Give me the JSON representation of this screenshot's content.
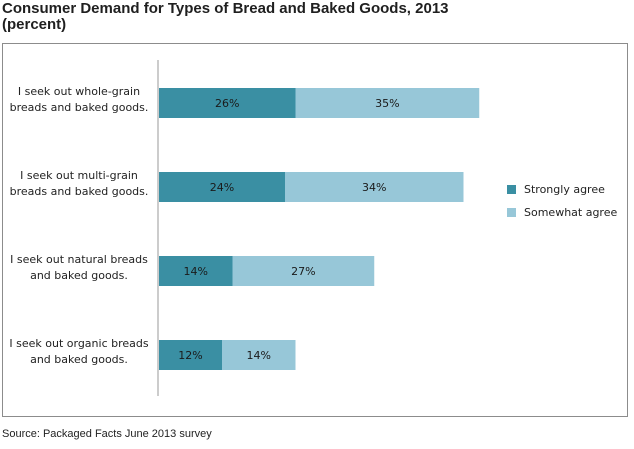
{
  "chart_data": {
    "type": "bar",
    "orientation": "horizontal",
    "stacked": true,
    "title": "Consumer Demand for Types of Bread and Baked Goods, 2013",
    "subtitle": "(percent)",
    "categories": [
      [
        "I seek out whole-grain",
        "breads and baked goods."
      ],
      [
        "I seek out multi-grain",
        "breads and baked goods."
      ],
      [
        "I seek out natural breads",
        "and baked goods."
      ],
      [
        "I seek out organic breads",
        "and baked goods."
      ]
    ],
    "series": [
      {
        "name": "Strongly agree",
        "color": "#3a8fa3",
        "values": [
          26,
          24,
          14,
          12
        ],
        "labels": [
          "26%",
          "24%",
          "14%",
          "12%"
        ]
      },
      {
        "name": "Somewhat agree",
        "color": "#97c7d8",
        "values": [
          35,
          34,
          27,
          14
        ],
        "labels": [
          "35%",
          "34%",
          "27%",
          "14%"
        ]
      }
    ],
    "xlim": [
      0,
      100
    ],
    "grid": false,
    "legend_position": "right"
  },
  "source": "Source:  Packaged Facts June 2013 survey"
}
